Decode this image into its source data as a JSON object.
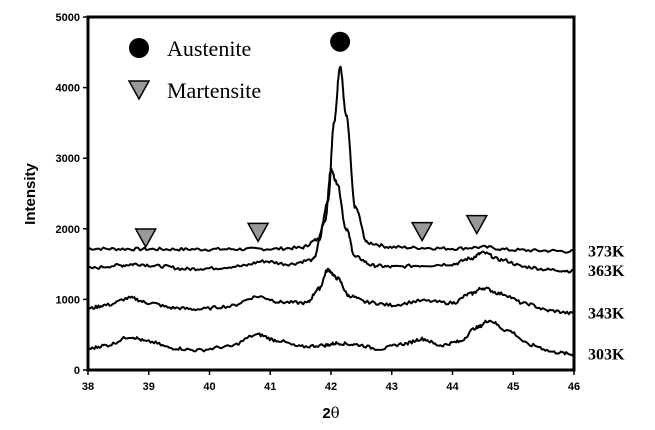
{
  "chart_data": {
    "type": "line",
    "title": "",
    "xlabel": "2θ",
    "ylabel": "Intensity",
    "xlim": [
      38,
      46
    ],
    "ylim": [
      0,
      5000
    ],
    "x_ticks": [
      38,
      39,
      40,
      41,
      42,
      43,
      44,
      45,
      46
    ],
    "y_ticks": [
      0,
      1000,
      2000,
      3000,
      4000,
      5000
    ],
    "grid": false,
    "legend": {
      "position": "top-left",
      "entries": [
        {
          "label": "Austenite",
          "marker": "circle",
          "color": "#000000"
        },
        {
          "label": "Martensite",
          "marker": "triangle-down",
          "color": "#999999"
        }
      ]
    },
    "series": [
      {
        "name": "373K",
        "x": [
          38,
          38.5,
          39,
          39.5,
          40,
          40.5,
          41,
          41.5,
          41.8,
          41.95,
          42.05,
          42.15,
          42.25,
          42.4,
          42.6,
          43,
          43.5,
          44,
          44.5,
          45,
          45.5,
          46
        ],
        "y": [
          1720,
          1715,
          1712,
          1710,
          1710,
          1712,
          1715,
          1730,
          1850,
          2400,
          3500,
          4300,
          3600,
          2300,
          1800,
          1740,
          1730,
          1720,
          1740,
          1700,
          1690,
          1680
        ]
      },
      {
        "name": "363K",
        "x": [
          38,
          38.5,
          38.8,
          39.2,
          39.6,
          40,
          40.5,
          40.9,
          41.3,
          41.7,
          41.9,
          42.0,
          42.1,
          42.25,
          42.4,
          42.7,
          43,
          43.5,
          44,
          44.3,
          44.5,
          44.8,
          45.2,
          45.6,
          46
        ],
        "y": [
          1440,
          1480,
          1500,
          1470,
          1430,
          1440,
          1470,
          1540,
          1500,
          1560,
          2100,
          2830,
          2650,
          2000,
          1600,
          1480,
          1460,
          1480,
          1500,
          1580,
          1660,
          1560,
          1460,
          1420,
          1400
        ]
      },
      {
        "name": "343K",
        "x": [
          38,
          38.3,
          38.7,
          39,
          39.4,
          39.8,
          40.3,
          40.8,
          41.2,
          41.6,
          41.8,
          41.95,
          42.1,
          42.3,
          42.6,
          43,
          43.5,
          44,
          44.3,
          44.5,
          44.8,
          45.2,
          45.6,
          46
        ],
        "y": [
          870,
          920,
          1020,
          950,
          880,
          860,
          900,
          1040,
          960,
          950,
          1150,
          1420,
          1300,
          1050,
          960,
          920,
          980,
          950,
          1080,
          1160,
          1080,
          940,
          840,
          800
        ]
      },
      {
        "name": "303K",
        "x": [
          38,
          38.3,
          38.7,
          39,
          39.4,
          39.8,
          40.3,
          40.8,
          41.1,
          41.5,
          41.9,
          42.1,
          42.4,
          42.8,
          43.2,
          43.5,
          43.8,
          44.1,
          44.4,
          44.6,
          44.9,
          45.3,
          45.7,
          46
        ],
        "y": [
          300,
          350,
          470,
          400,
          310,
          280,
          330,
          500,
          420,
          330,
          350,
          380,
          360,
          300,
          370,
          440,
          350,
          400,
          600,
          700,
          560,
          350,
          250,
          220
        ]
      }
    ],
    "annotations": [
      {
        "marker": "circle",
        "phase": "Austenite",
        "x": 42.15,
        "y": 4650
      },
      {
        "marker": "triangle-down",
        "phase": "Martensite",
        "x": 38.95,
        "y": 1870
      },
      {
        "marker": "triangle-down",
        "phase": "Martensite",
        "x": 40.8,
        "y": 1950
      },
      {
        "marker": "triangle-down",
        "phase": "Martensite",
        "x": 43.5,
        "y": 1960
      },
      {
        "marker": "triangle-down",
        "phase": "Martensite",
        "x": 44.4,
        "y": 2060
      }
    ]
  }
}
